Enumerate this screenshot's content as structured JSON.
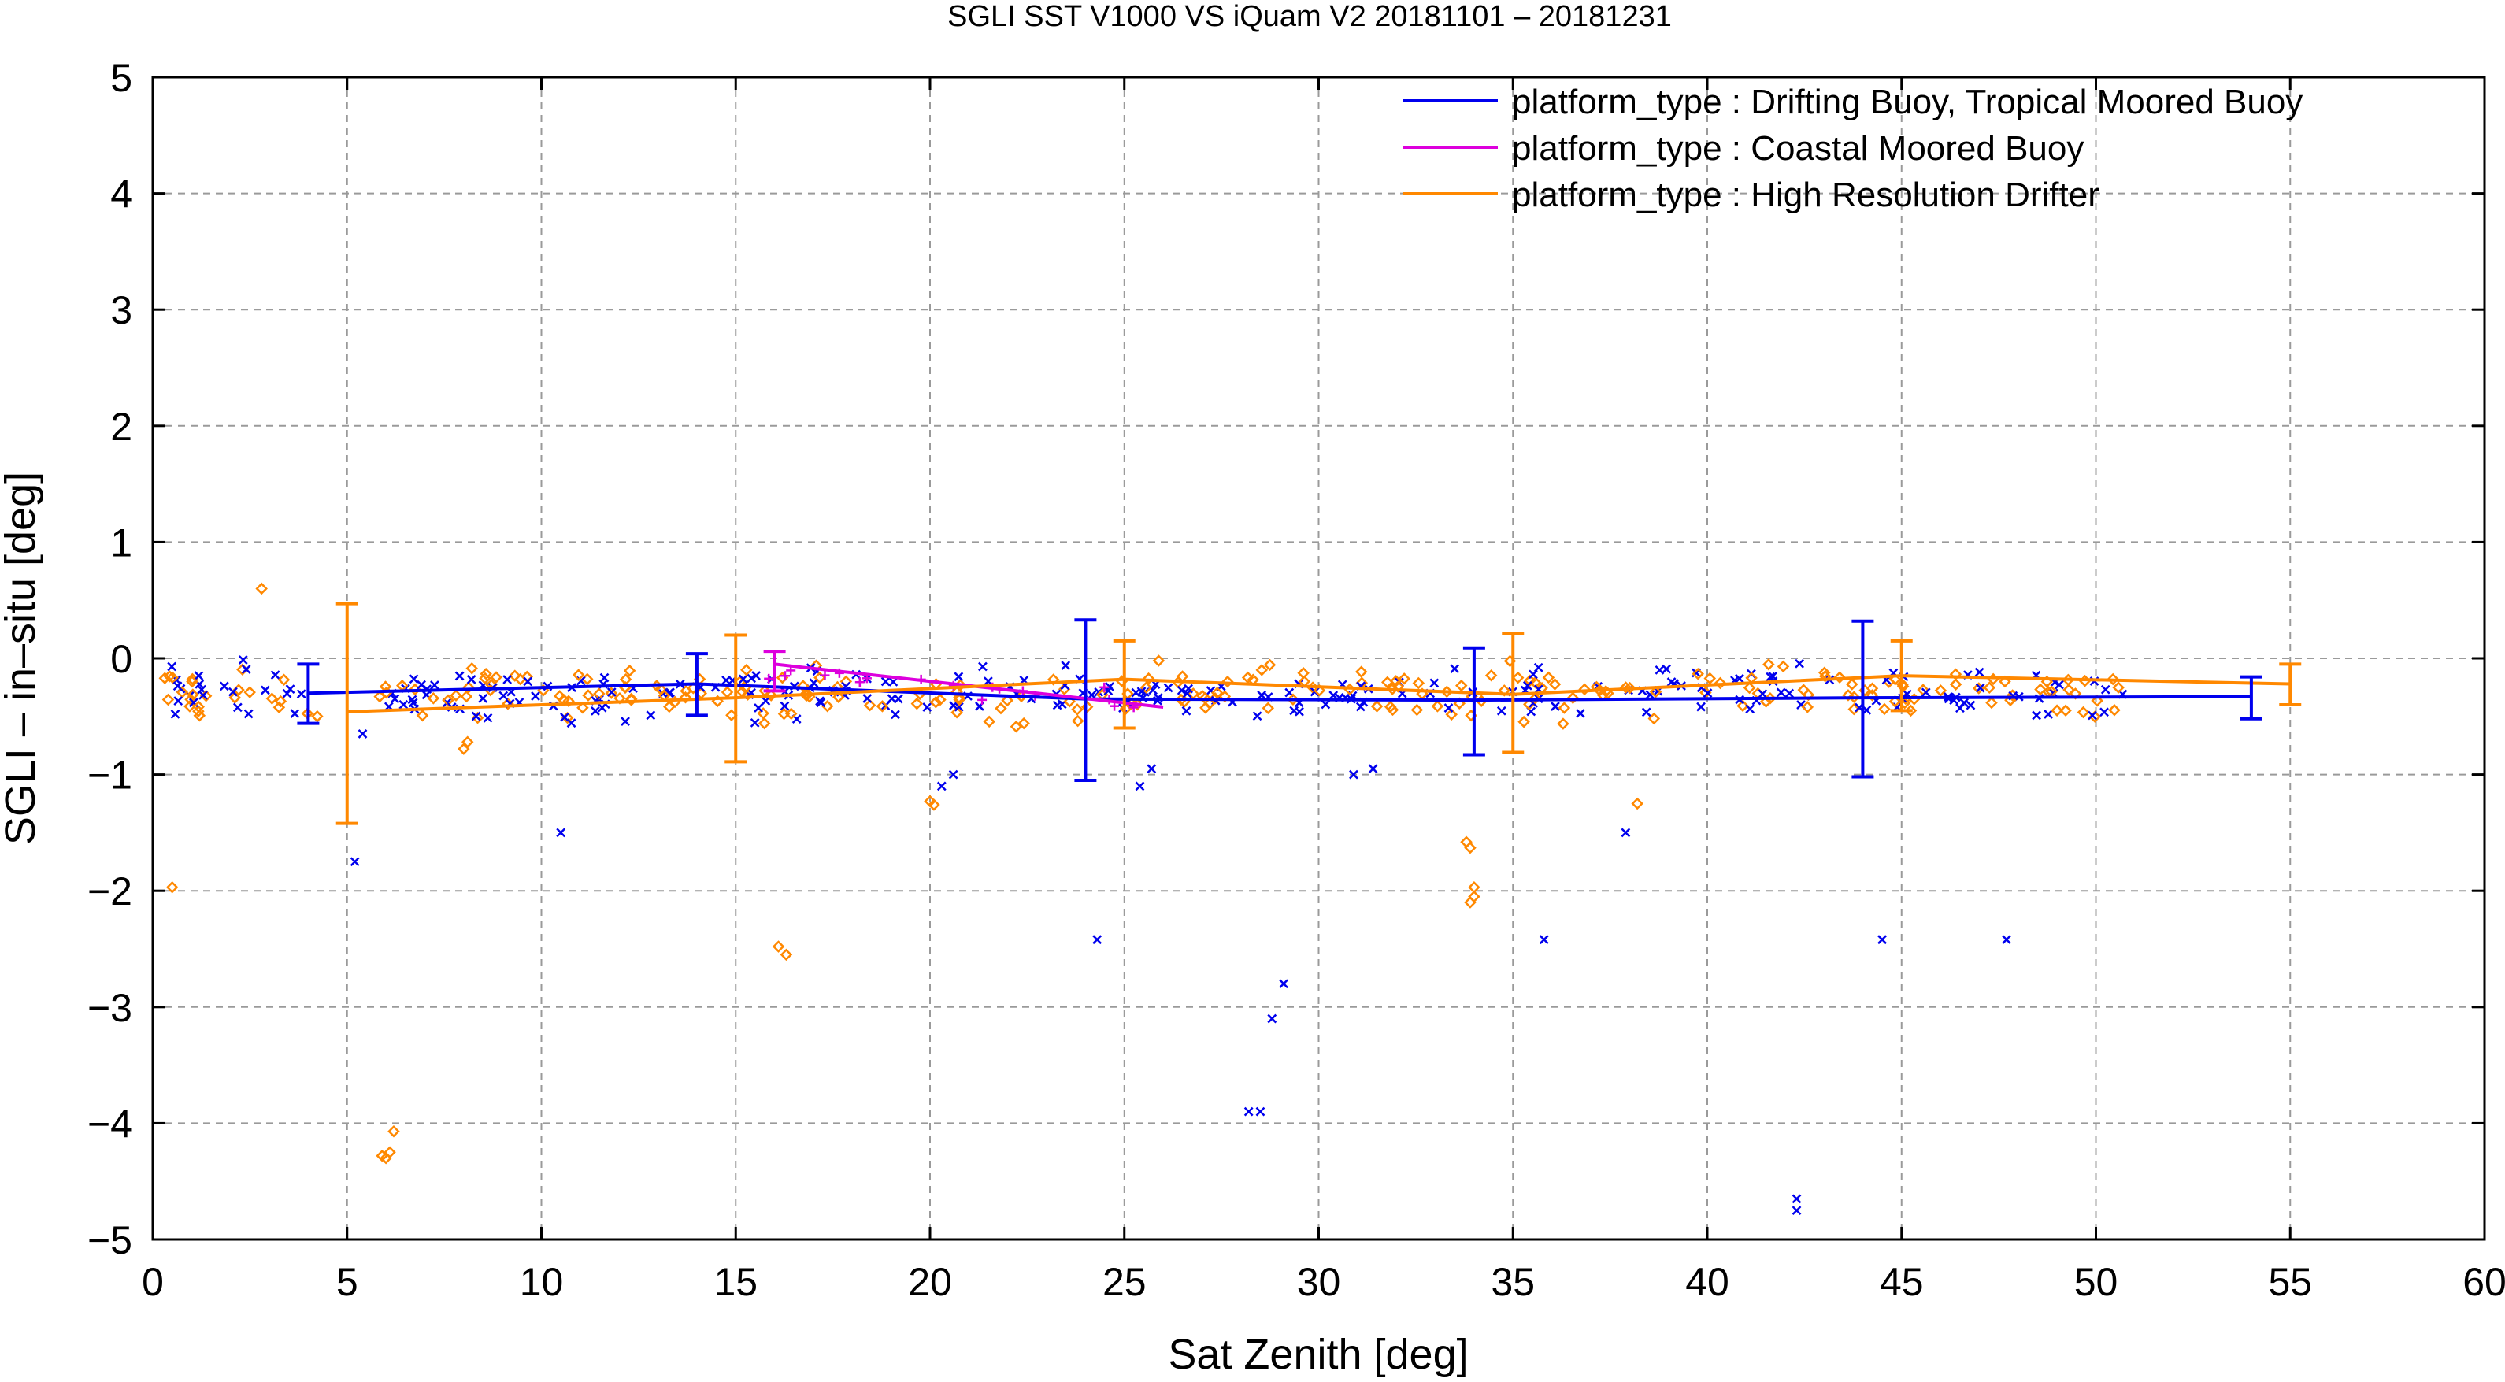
{
  "chart_data": {
    "type": "scatter",
    "title": "SGLI SST V1000 VS iQuam V2 20181101 – 20181231",
    "xlabel": "Sat Zenith [deg]",
    "ylabel": "SGLI – in–situ [deg]",
    "xlim": [
      0,
      60
    ],
    "ylim": [
      -5,
      5
    ],
    "xticks": [
      0,
      5,
      10,
      15,
      20,
      25,
      30,
      35,
      40,
      45,
      50,
      55,
      60
    ],
    "yticks": [
      -5,
      -4,
      -3,
      -2,
      -1,
      0,
      1,
      2,
      3,
      4,
      5
    ],
    "xtick_labels": [
      "0",
      "5",
      "10",
      "15",
      "20",
      "25",
      "30",
      "35",
      "40",
      "45",
      "50",
      "55",
      "60"
    ],
    "ytick_labels": [
      "−5",
      "−4",
      "−3",
      "−2",
      "−1",
      "0",
      "1",
      "2",
      "3",
      "4",
      "5"
    ],
    "grid": true,
    "legend_position": "top-right",
    "series": [
      {
        "name": "platform_type : Drifting Buoy, Tropical Moored Buoy",
        "color": "#0000ee",
        "marker": "x",
        "mean_line": [
          [
            4,
            -0.3
          ],
          [
            14,
            -0.22
          ],
          [
            24,
            -0.35
          ],
          [
            34,
            -0.36
          ],
          [
            44,
            -0.34
          ],
          [
            54,
            -0.33
          ]
        ],
        "error_bars": [
          [
            4,
            -0.56,
            -0.05
          ],
          [
            14,
            -0.49,
            0.04
          ],
          [
            24,
            -1.05,
            0.33
          ],
          [
            34,
            -0.83,
            0.09
          ],
          [
            44,
            -1.02,
            0.32
          ],
          [
            54,
            -0.52,
            -0.16
          ]
        ]
      },
      {
        "name": "platform_type : Coastal Moored Buoy",
        "color": "#dd00dd",
        "marker": "+",
        "mean_line": [
          [
            16,
            -0.05
          ],
          [
            26,
            -0.42
          ]
        ],
        "error_bars": [
          [
            16,
            -0.28,
            0.06
          ]
        ]
      },
      {
        "name": "platform_type : High Resolution Drifter",
        "color": "#ff8800",
        "marker": "diamond",
        "mean_line": [
          [
            5,
            -0.46
          ],
          [
            15,
            -0.34
          ],
          [
            25,
            -0.18
          ],
          [
            35,
            -0.31
          ],
          [
            45,
            -0.15
          ],
          [
            55,
            -0.22
          ]
        ],
        "error_bars": [
          [
            5,
            -1.42,
            0.47
          ],
          [
            15,
            -0.89,
            0.2
          ],
          [
            25,
            -0.6,
            0.15
          ],
          [
            35,
            -0.81,
            0.21
          ],
          [
            45,
            -0.45,
            0.15
          ],
          [
            55,
            -0.4,
            -0.05
          ]
        ]
      }
    ],
    "outliers": {
      "blue": [
        [
          5.2,
          -1.75
        ],
        [
          5.4,
          -0.65
        ],
        [
          10.5,
          -1.5
        ],
        [
          20.6,
          -1.0
        ],
        [
          20.3,
          -1.1
        ],
        [
          24.3,
          -2.42
        ],
        [
          28.2,
          -3.9
        ],
        [
          28.5,
          -3.9
        ],
        [
          28.8,
          -3.1
        ],
        [
          29.1,
          -2.8
        ],
        [
          30.9,
          -1.0
        ],
        [
          31.4,
          -0.95
        ],
        [
          37.9,
          -1.5
        ],
        [
          35.8,
          -2.42
        ],
        [
          42.3,
          -4.65
        ],
        [
          42.3,
          -4.75
        ],
        [
          44.5,
          -2.42
        ],
        [
          47.7,
          -2.42
        ],
        [
          25.7,
          -0.95
        ],
        [
          25.4,
          -1.1
        ]
      ],
      "orange": [
        [
          0.5,
          -1.97
        ],
        [
          5.9,
          -4.28
        ],
        [
          6.0,
          -4.3
        ],
        [
          6.1,
          -4.25
        ],
        [
          6.2,
          -4.07
        ],
        [
          16.1,
          -2.48
        ],
        [
          16.3,
          -2.55
        ],
        [
          20.0,
          -1.23
        ],
        [
          20.1,
          -1.26
        ],
        [
          33.8,
          -1.58
        ],
        [
          33.9,
          -1.63
        ],
        [
          33.9,
          -2.1
        ],
        [
          34.0,
          -2.05
        ],
        [
          34.0,
          -1.97
        ],
        [
          38.2,
          -1.25
        ],
        [
          8.0,
          -0.78
        ],
        [
          8.1,
          -0.72
        ],
        [
          2.8,
          0.6
        ]
      ]
    }
  }
}
